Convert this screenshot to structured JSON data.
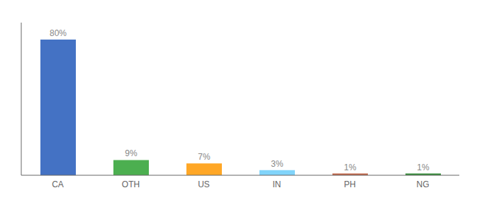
{
  "chart_data": {
    "type": "bar",
    "categories": [
      "CA",
      "OTH",
      "US",
      "IN",
      "PH",
      "NG"
    ],
    "values": [
      80,
      9,
      7,
      3,
      1,
      1
    ],
    "value_labels": [
      "80%",
      "9%",
      "7%",
      "3%",
      "1%",
      "1%"
    ],
    "colors": [
      "#4472c4",
      "#4caf50",
      "#ffa726",
      "#81d4fa",
      "#c0674a",
      "#388e3c"
    ],
    "ylim": [
      0,
      90
    ],
    "data_labels": true,
    "grid": false,
    "tick_labels": "x"
  }
}
